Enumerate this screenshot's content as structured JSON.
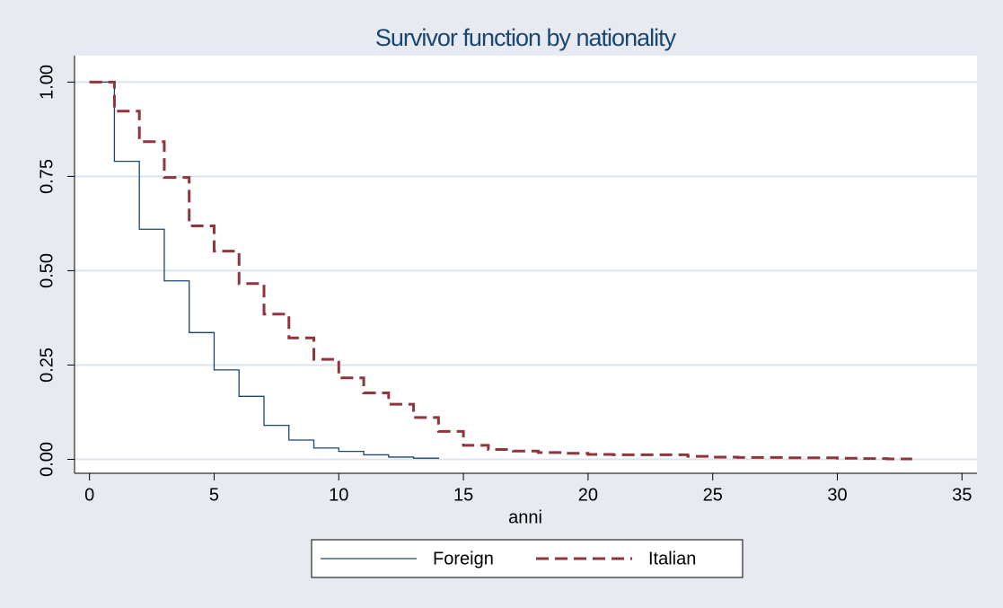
{
  "chart_data": {
    "type": "step",
    "title": "Survivor function by nationality",
    "x_label": "anni",
    "xlim": [
      -0.6,
      35.6
    ],
    "ylim": [
      -0.037,
      1.07
    ],
    "xticks": [
      0,
      5,
      10,
      15,
      20,
      25,
      30,
      35
    ],
    "yticks": [
      {
        "value": 0,
        "label": "0.00"
      },
      {
        "value": 0.25,
        "label": "0.25"
      },
      {
        "value": 0.5,
        "label": "0.50"
      },
      {
        "value": 0.75,
        "label": "0.75"
      },
      {
        "value": 1,
        "label": "1.00"
      }
    ],
    "grid": true,
    "series": [
      {
        "name": "Foreign",
        "color": "#1a476f",
        "dash": false,
        "x": [
          0,
          1,
          2,
          3,
          4,
          5,
          6,
          7,
          8,
          9,
          10,
          11,
          12,
          13,
          14
        ],
        "values": [
          1.0,
          0.79,
          0.61,
          0.473,
          0.336,
          0.237,
          0.167,
          0.09,
          0.051,
          0.03,
          0.021,
          0.012,
          0.006,
          0.003,
          0.001
        ]
      },
      {
        "name": "Italian",
        "color": "#90353b",
        "dash": true,
        "x": [
          0,
          1,
          2,
          3,
          4,
          5,
          6,
          7,
          8,
          9,
          10,
          11,
          12,
          13,
          14,
          15,
          16,
          17,
          18,
          19,
          20,
          21,
          22,
          23,
          24,
          25,
          26,
          27,
          28,
          29,
          30,
          31,
          32,
          33
        ],
        "values": [
          1.0,
          0.923,
          0.842,
          0.747,
          0.619,
          0.552,
          0.466,
          0.385,
          0.322,
          0.265,
          0.216,
          0.176,
          0.146,
          0.111,
          0.074,
          0.037,
          0.026,
          0.022,
          0.018,
          0.016,
          0.013,
          0.012,
          0.012,
          0.012,
          0.008,
          0.006,
          0.005,
          0.005,
          0.004,
          0.004,
          0.003,
          0.002,
          0.001,
          0.001
        ]
      }
    ]
  }
}
